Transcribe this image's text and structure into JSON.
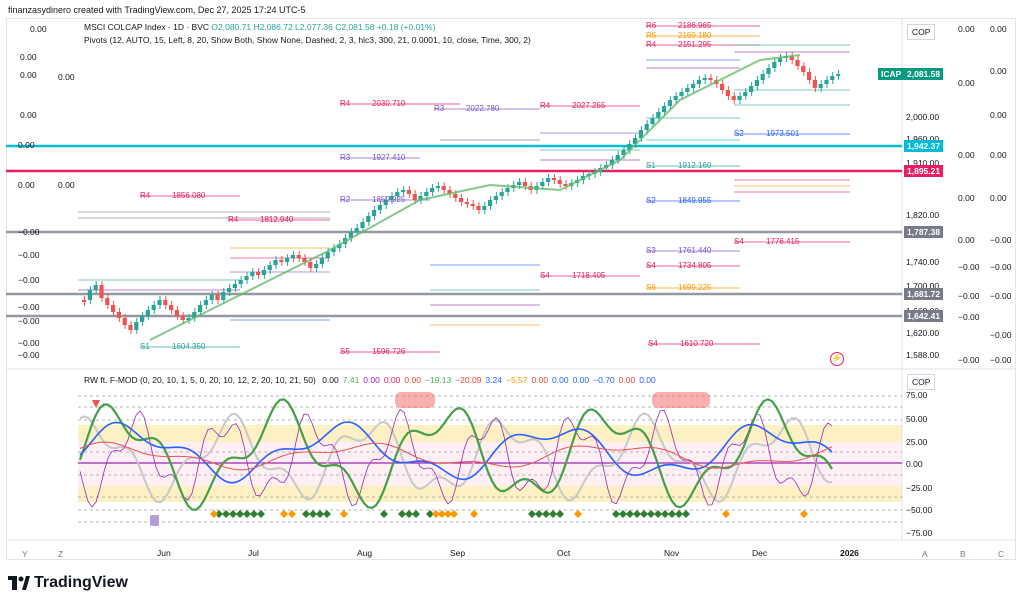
{
  "header": {
    "created_by": "finanzasydinero created with TradingView.com, Dec 27, 2025 17:24 UTC-5"
  },
  "main_chart": {
    "symbol_line": "MSCI COLCAP Index · 1D · BVC",
    "ohlc": "O2,080.71  H2,086.72  L2,077.36  C2,081.58  +0.18 (+0.01%)",
    "indicator_line": "Pivots (12, AUTO, 15, Left, 8, 20, Show Both, Show None, Dashed, 2, 3, hlc3, 300, 21, 0.0001, 10, close, Time, 300, 2)",
    "currency": "COP",
    "price_axis": [
      "2,000.00",
      "1,960.00",
      "1,910.00",
      "1,820.00",
      "1,740.00",
      "1,700.00",
      "1,660.00",
      "1,620.00",
      "1,588.00"
    ],
    "tags": {
      "icap_label": "ICAP",
      "last_price": "2,081.58",
      "t1": "1,942.37",
      "t2": "1,895.21",
      "t3": "1,787.38",
      "t4": "1,681.72",
      "t5": "1,642.41"
    },
    "left_zeros": [
      "0.00",
      "0.00",
      "0.00",
      "0.00",
      "0.00",
      "0.00",
      "−0.00",
      "−0.00",
      "−0.00",
      "−0.00",
      "−0.00",
      "−0.00",
      "−0.00",
      "−0.00"
    ],
    "right_zeros": [
      "0.00",
      "0.00",
      "0.00",
      "0.00",
      "0.00",
      "−0.00",
      "−0.00",
      "−0.00",
      "−0.00",
      "−0.00",
      "−0.00",
      "−0.00",
      "−0.00",
      "−0.00"
    ],
    "pivot_labels": [
      {
        "t": "R4",
        "v": "2030.710"
      },
      {
        "t": "R4",
        "v": "2027.255"
      },
      {
        "t": "R3",
        "v": "2022.780"
      },
      {
        "t": "R4",
        "v": "1856.080"
      },
      {
        "t": "R4",
        "v": "1812.940"
      },
      {
        "t": "R3",
        "v": "1927.410"
      },
      {
        "t": "R2",
        "v": "1850.925"
      },
      {
        "t": "S4",
        "v": "1776.415"
      },
      {
        "t": "S4",
        "v": "1718.405"
      },
      {
        "t": "S4",
        "v": "1610.720"
      },
      {
        "t": "S1",
        "v": "1604.350"
      },
      {
        "t": "S5",
        "v": "1596.726"
      },
      {
        "t": "R6",
        "v": "2186.965"
      },
      {
        "t": "R5",
        "v": "2169.180"
      },
      {
        "t": "R4",
        "v": "2151.295"
      },
      {
        "t": "S2",
        "v": "1973.501"
      },
      {
        "t": "S1",
        "v": "1912.160"
      },
      {
        "t": "S2",
        "v": "1849.955"
      },
      {
        "t": "S4",
        "v": "1734.805"
      },
      {
        "t": "S6",
        "v": "1699.225"
      },
      {
        "t": "S3",
        "v": "1761.440"
      }
    ]
  },
  "oscillator": {
    "legend_name": "RW ft. F-MOD (0, 20, 10, 1, 5, 0, 20, 10, 12, 2, 20, 10, 21, 50)",
    "values": [
      "0.00",
      "7.41",
      "0.00",
      "0.00",
      "0.00",
      "−19.13",
      "−20.09",
      "3.24",
      "−5.57",
      "0.00",
      "0.00",
      "0.00",
      "−0.70",
      "0.00",
      "0.00"
    ],
    "value_colors": [
      "#131722",
      "#4caf50",
      "#9c27b0",
      "#e91e63",
      "#f44336",
      "#4caf50",
      "#f44336",
      "#2962ff",
      "#ff9800",
      "#f44336",
      "#2962ff",
      "#2962ff",
      "#2962ff",
      "#f44336",
      "#2962ff"
    ],
    "currency": "COP",
    "axis": [
      "75.00",
      "50.00",
      "25.00",
      "0.00",
      "−25.00",
      "−50.00",
      "−75.00"
    ]
  },
  "time_axis": [
    "Jun",
    "Jul",
    "Aug",
    "Sep",
    "Oct",
    "Nov",
    "Dec",
    "2026"
  ],
  "bottom_left": [
    "Y",
    "Z"
  ],
  "bottom_right": [
    "A",
    "B",
    "C"
  ],
  "footer": {
    "brand": "TradingView"
  },
  "colors": {
    "up": "#26a69a",
    "down": "#ef5350",
    "cyan_line": "#00bcd4",
    "pink_line": "#e91e63",
    "gray_line": "#787b86",
    "icap": "#089981"
  }
}
